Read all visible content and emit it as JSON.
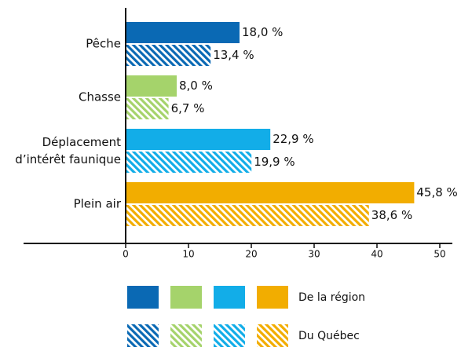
{
  "chart_data": {
    "type": "bar",
    "orientation": "horizontal",
    "categories": [
      "Pêche",
      "Chasse",
      "Déplacement\nd’intérêt faunique",
      "Plein air"
    ],
    "colors": [
      "#0a69b4",
      "#a5d36b",
      "#12ade8",
      "#f2ad00"
    ],
    "series": [
      {
        "name": "De la région",
        "pattern": "solid",
        "values": [
          18.0,
          8.0,
          22.9,
          45.8
        ],
        "value_labels": [
          "18,0 %",
          "8,0 %",
          "22,9 %",
          "45,8 %"
        ]
      },
      {
        "name": "Du Québec",
        "pattern": "hatched",
        "values": [
          13.4,
          6.7,
          19.9,
          38.6
        ],
        "value_labels": [
          "13,4 %",
          "6,7 %",
          "19,9 %",
          "38,6 %"
        ]
      }
    ],
    "xlim": [
      0,
      50
    ],
    "xticks": [
      0,
      10,
      20,
      30,
      40,
      50
    ]
  }
}
